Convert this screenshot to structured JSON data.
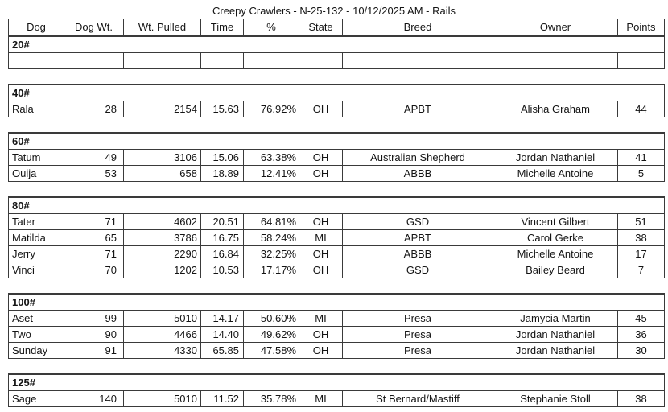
{
  "title": "Creepy Crawlers - N-25-132 - 10/12/2025 AM - Rails",
  "table": {
    "columns": [
      "Dog",
      "Dog Wt.",
      "Wt. Pulled",
      "Time",
      "%",
      "State",
      "Breed",
      "Owner",
      "Points"
    ],
    "sections": [
      {
        "label": "20#",
        "rows": [
          [
            "",
            "",
            "",
            "",
            "",
            "",
            "",
            "",
            ""
          ]
        ]
      },
      {
        "label": "40#",
        "rows": [
          [
            "Rala",
            "28",
            "2154",
            "15.63",
            "76.92%",
            "OH",
            "APBT",
            "Alisha Graham",
            "44"
          ]
        ]
      },
      {
        "label": "60#",
        "rows": [
          [
            "Tatum",
            "49",
            "3106",
            "15.06",
            "63.38%",
            "OH",
            "Australian Shepherd",
            "Jordan Nathaniel",
            "41"
          ],
          [
            "Ouija",
            "53",
            "658",
            "18.89",
            "12.41%",
            "OH",
            "ABBB",
            "Michelle Antoine",
            "5"
          ]
        ]
      },
      {
        "label": "80#",
        "rows": [
          [
            "Tater",
            "71",
            "4602",
            "20.51",
            "64.81%",
            "OH",
            "GSD",
            "Vincent Gilbert",
            "51"
          ],
          [
            "Matilda",
            "65",
            "3786",
            "16.75",
            "58.24%",
            "MI",
            "APBT",
            "Carol Gerke",
            "38"
          ],
          [
            "Jerry",
            "71",
            "2290",
            "16.84",
            "32.25%",
            "OH",
            "ABBB",
            "Michelle Antoine",
            "17"
          ],
          [
            "Vinci",
            "70",
            "1202",
            "10.53",
            "17.17%",
            "OH",
            "GSD",
            "Bailey Beard",
            "7"
          ]
        ]
      },
      {
        "label": "100#",
        "rows": [
          [
            "Aset",
            "99",
            "5010",
            "14.17",
            "50.60%",
            "MI",
            "Presa",
            "Jamycia Martin",
            "45"
          ],
          [
            "Two",
            "90",
            "4466",
            "14.40",
            "49.62%",
            "OH",
            "Presa",
            "Jordan Nathaniel",
            "36"
          ],
          [
            "Sunday",
            "91",
            "4330",
            "65.85",
            "47.58%",
            "OH",
            "Presa",
            "Jordan Nathaniel",
            "30"
          ]
        ]
      },
      {
        "label": "125#",
        "rows": [
          [
            "Sage",
            "140",
            "5010",
            "11.52",
            "35.78%",
            "MI",
            "St Bernard/Mastiff",
            "Stephanie Stoll",
            "38"
          ]
        ]
      }
    ]
  },
  "colors": {
    "border": "#3a3a3a",
    "text": "#141414",
    "background": "#ffffff"
  }
}
